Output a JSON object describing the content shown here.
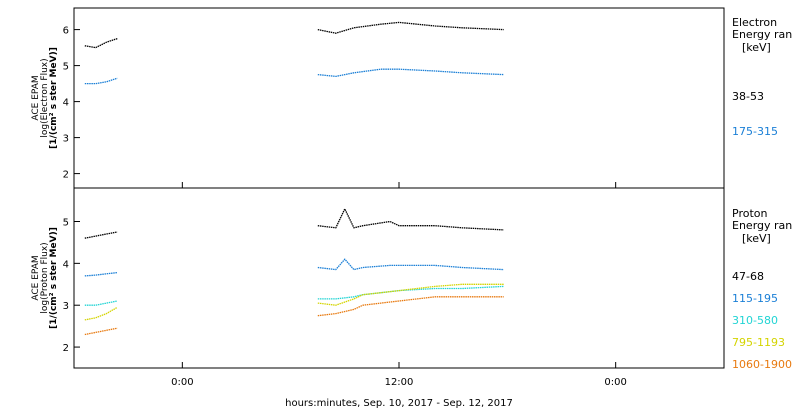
{
  "chart_data": [
    {
      "type": "scatter",
      "panel": "electron",
      "ylabel_lines": [
        "ACE EPAM",
        "log(Electron Flux)",
        "[1/(cm² s ster MeV)]"
      ],
      "ylim": [
        1.6,
        6.6
      ],
      "yticks": [
        2,
        3,
        4,
        5,
        6
      ],
      "legend_lines": [
        "Electron",
        "Energy ran",
        "[keV]"
      ],
      "series": [
        {
          "name": "38-53",
          "color": "#000000",
          "x": [
            -5.4,
            -4.8,
            -4.2,
            -3.6,
            7.5,
            8.5,
            9.5,
            11,
            12,
            14,
            15.5,
            17.8
          ],
          "y": [
            5.55,
            5.5,
            5.65,
            5.75,
            6.0,
            5.9,
            6.05,
            6.15,
            6.2,
            6.1,
            6.05,
            6.0
          ]
        },
        {
          "name": "175-315",
          "color": "#1a7fd6",
          "x": [
            -5.4,
            -4.8,
            -4.2,
            -3.6,
            7.5,
            8.5,
            9.5,
            11,
            12,
            14,
            15.5,
            17.8
          ],
          "y": [
            4.5,
            4.5,
            4.55,
            4.65,
            4.75,
            4.7,
            4.8,
            4.9,
            4.9,
            4.85,
            4.8,
            4.75
          ]
        }
      ]
    },
    {
      "type": "scatter",
      "panel": "proton",
      "ylabel_lines": [
        "ACE EPAM",
        "log(Proton Flux)",
        "[1/(cm² s ster MeV)]"
      ],
      "ylim": [
        1.5,
        5.8
      ],
      "yticks": [
        2,
        3,
        4,
        5
      ],
      "legend_lines": [
        "Proton",
        "Energy ran",
        "[keV]"
      ],
      "series": [
        {
          "name": "47-68",
          "color": "#000000",
          "x": [
            -5.4,
            -4.8,
            -4.2,
            -3.6,
            7.5,
            8.5,
            9.0,
            9.5,
            10,
            11.5,
            12,
            14,
            15.5,
            17.8
          ],
          "y": [
            4.6,
            4.65,
            4.7,
            4.75,
            4.9,
            4.85,
            5.3,
            4.85,
            4.9,
            5.0,
            4.9,
            4.9,
            4.85,
            4.8
          ]
        },
        {
          "name": "115-195",
          "color": "#1a7fd6",
          "x": [
            -5.4,
            -4.8,
            -4.2,
            -3.6,
            7.5,
            8.5,
            9.0,
            9.5,
            10,
            11.5,
            12,
            14,
            15.5,
            17.8
          ],
          "y": [
            3.7,
            3.72,
            3.75,
            3.78,
            3.9,
            3.85,
            4.1,
            3.85,
            3.9,
            3.95,
            3.95,
            3.95,
            3.9,
            3.85
          ]
        },
        {
          "name": "310-580",
          "color": "#22d4d4",
          "x": [
            -5.4,
            -4.8,
            -4.2,
            -3.6,
            7.5,
            8.5,
            9.5,
            10,
            11,
            12,
            14,
            15.5,
            17.8
          ],
          "y": [
            3.0,
            3.0,
            3.05,
            3.1,
            3.15,
            3.15,
            3.2,
            3.25,
            3.3,
            3.35,
            3.4,
            3.4,
            3.45
          ]
        },
        {
          "name": "795-1193",
          "color": "#d4d400",
          "x": [
            -5.4,
            -4.8,
            -4.2,
            -3.6,
            7.5,
            8.5,
            9.5,
            10,
            11,
            12,
            14,
            15.5,
            17.8
          ],
          "y": [
            2.65,
            2.7,
            2.8,
            2.95,
            3.05,
            3.0,
            3.15,
            3.25,
            3.3,
            3.35,
            3.45,
            3.5,
            3.5
          ]
        },
        {
          "name": "1060-1900",
          "color": "#e87a10",
          "x": [
            -5.4,
            -4.8,
            -4.2,
            -3.6,
            7.5,
            8.5,
            9.5,
            10,
            11,
            12,
            14,
            15.5,
            17.8
          ],
          "y": [
            2.3,
            2.35,
            2.4,
            2.45,
            2.75,
            2.8,
            2.9,
            3.0,
            3.05,
            3.1,
            3.2,
            3.2,
            3.2
          ]
        }
      ]
    }
  ],
  "xaxis": {
    "range": [
      -6,
      30
    ],
    "ticks": [
      0,
      12,
      24
    ],
    "tick_labels": [
      "0:00",
      "12:00",
      "0:00"
    ],
    "label": "hours:minutes, Sep. 10, 2017 - Sep. 12, 2017"
  }
}
